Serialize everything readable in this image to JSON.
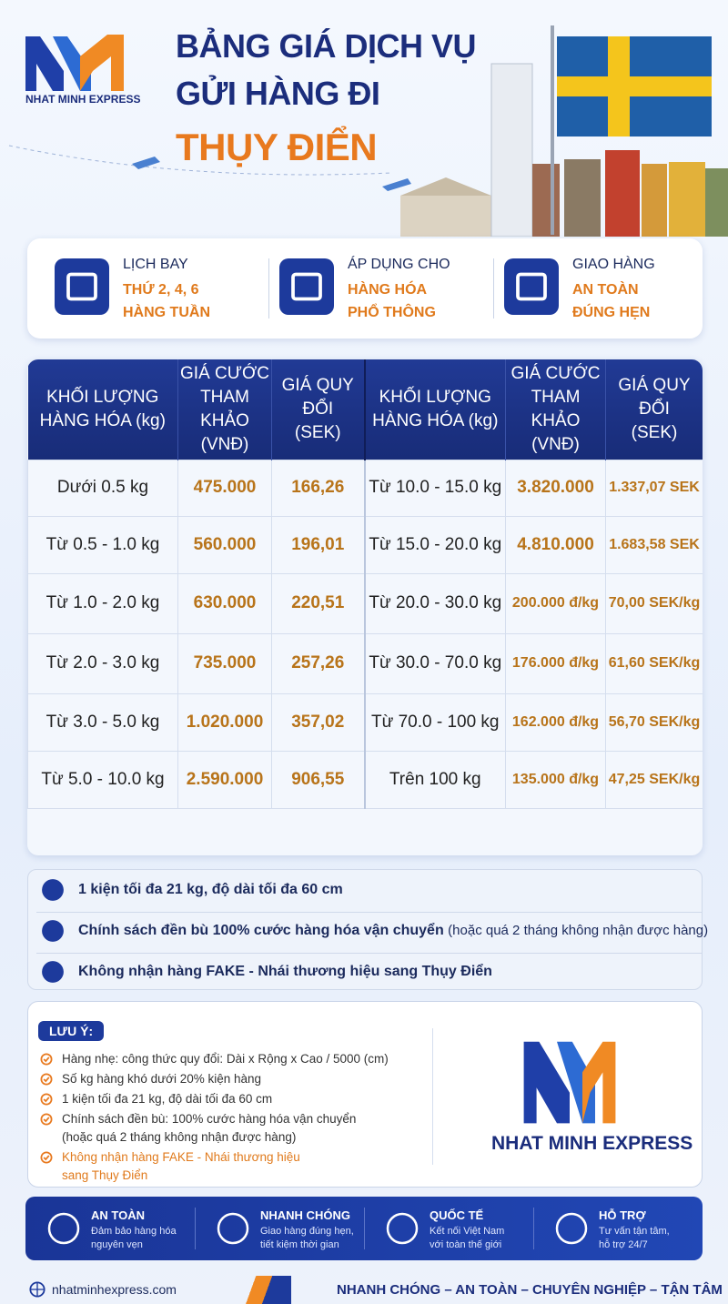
{
  "header": {
    "brand": "NHAT MINH EXPRESS",
    "title_lines": [
      "BẢNG GIÁ DỊCH VỤ",
      "GỬI HÀNG ĐI",
      "THỤY ĐIỂN"
    ]
  },
  "features": [
    {
      "label": "LỊCH BAY",
      "lines": [
        "THỨ 2, 4, 6",
        "HÀNG TUẦN"
      ]
    },
    {
      "label": "ÁP DỤNG CHO",
      "lines": [
        "HÀNG HÓA",
        "PHỔ THÔNG"
      ]
    },
    {
      "label": "GIAO HÀNG",
      "lines": [
        "AN TOÀN",
        "ĐÚNG HẸN"
      ]
    }
  ],
  "table": {
    "headers": [
      [
        "KHỐI LƯỢNG",
        "HÀNG HÓA (kg)"
      ],
      [
        "GIÁ CƯỚC",
        "THAM KHẢO",
        "(VNĐ)"
      ],
      [
        "GIÁ QUY ĐỔI",
        "(SEK)"
      ],
      [
        "KHỐI LƯỢNG",
        "HÀNG HÓA (kg)"
      ],
      [
        "GIÁ CƯỚC",
        "THAM KHẢO",
        "(VNĐ)"
      ],
      [
        "GIÁ QUY ĐỔI",
        "(SEK)"
      ]
    ],
    "rows": [
      [
        "Dưới 0.5 kg",
        "475.000",
        "166,26",
        "Từ 10.0 - 15.0 kg",
        "3.820.000",
        "1.337,07 SEK"
      ],
      [
        "Từ 0.5 - 1.0 kg",
        "560.000",
        "196,01",
        "Từ 15.0 - 20.0 kg",
        "4.810.000",
        "1.683,58 SEK"
      ],
      [
        "Từ 1.0 - 2.0 kg",
        "630.000",
        "220,51",
        "Từ 20.0 - 30.0 kg",
        "200.000 đ/kg",
        "70,00 SEK/kg"
      ],
      [
        "Từ 2.0 - 3.0 kg",
        "735.000",
        "257,26",
        "Từ 30.0 - 70.0 kg",
        "176.000 đ/kg",
        "61,60 SEK/kg"
      ],
      [
        "Từ 3.0 - 5.0 kg",
        "1.020.000",
        "357,02",
        "Từ 70.0 - 100 kg",
        "162.000 đ/kg",
        "56,70 SEK/kg"
      ],
      [
        "Từ 5.0 - 10.0 kg",
        "2.590.000",
        "906,55",
        "Trên 100 kg",
        "135.000 đ/kg",
        "47,25 SEK/kg"
      ]
    ]
  },
  "notes": [
    {
      "text": "1 kiện tối đa 21 kg, độ dài tối đa 60 cm"
    },
    {
      "text": "Chính sách đền bù 100% cước hàng hóa vận chuyển",
      "extra": "(hoặc quá 2 tháng không nhận được hàng)"
    },
    {
      "text": "Không nhận hàng FAKE - Nhái thương hiệu sang Thụy Điển"
    }
  ],
  "caution": {
    "title": "LƯU Ý:",
    "items": [
      [
        "Hàng nhẹ: công thức quy đổi: Dài x Rộng x Cao / 5000 (cm)"
      ],
      [
        "Số kg hàng khó dưới 20% kiện hàng"
      ],
      [
        "1 kiện tối đa 21 kg, độ dài tối đa 60 cm"
      ],
      [
        "Chính sách đền bù: 100% cước hàng hóa vận chuyển",
        "(hoặc quá 2 tháng không nhận được hàng)"
      ],
      [
        "Không nhận hàng FAKE - Nhái thương hiệu",
        "sang Thụy Điển"
      ]
    ],
    "brand": "NHAT MINH EXPRESS"
  },
  "benefits": [
    {
      "title": "AN TOÀN",
      "lines": [
        "Đảm bảo hàng hóa",
        "nguyên vẹn"
      ]
    },
    {
      "title": "NHANH CHÓNG",
      "lines": [
        "Giao hàng đúng hẹn,",
        "tiết kiệm thời gian"
      ]
    },
    {
      "title": "QUỐC TẾ",
      "lines": [
        "Kết nối Việt Nam",
        "với toàn thế giới"
      ]
    },
    {
      "title": "HỖ TRỢ",
      "lines": [
        "Tư vấn tận tâm,",
        "hỗ trợ 24/7"
      ]
    }
  ],
  "footer": {
    "website": "nhatminhexpress.com",
    "slogan": "NHANH CHÓNG – AN TOÀN – CHUYÊN NGHIỆP – TẬN TÂM"
  }
}
